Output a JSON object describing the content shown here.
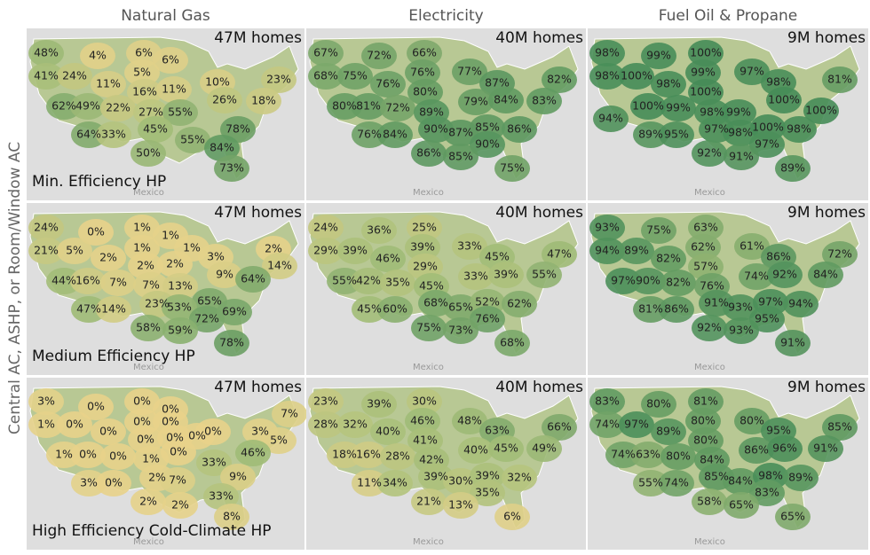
{
  "columns": [
    "Natural Gas",
    "Electricity",
    "Fuel Oil & Propane"
  ],
  "y_axis_label": "Central AC, ASHP, or Room/Window AC",
  "watermark": "Mexico",
  "rows": [
    {
      "label": "Min. Efficiency HP",
      "panels": [
        {
          "homes": "47M homes",
          "labels": [
            "48%",
            "4%",
            "6%",
            "6%",
            "41%",
            "24%",
            "11%",
            "5%",
            "10%",
            "23%",
            "16%",
            "11%",
            "62%",
            "49%",
            "22%",
            "27%",
            "55%",
            "26%",
            "18%",
            "45%",
            "78%",
            "64%",
            "33%",
            "55%",
            "84%",
            "50%",
            "73%"
          ]
        },
        {
          "homes": "40M homes",
          "labels": [
            "67%",
            "72%",
            "66%",
            "68%",
            "75%",
            "76%",
            "76%",
            "77%",
            "87%",
            "82%",
            "80%",
            "80%",
            "81%",
            "72%",
            "89%",
            "79%",
            "84%",
            "83%",
            "90%",
            "87%",
            "85%",
            "86%",
            "76%",
            "84%",
            "90%",
            "86%",
            "85%",
            "75%"
          ]
        },
        {
          "homes": "9M homes",
          "labels": [
            "98%",
            "99%",
            "100%",
            "98%",
            "100%",
            "98%",
            "99%",
            "97%",
            "98%",
            "81%",
            "100%",
            "100%",
            "99%",
            "98%",
            "99%",
            "100%",
            "100%",
            "94%",
            "97%",
            "98%",
            "100%",
            "98%",
            "89%",
            "95%",
            "97%",
            "92%",
            "91%",
            "89%"
          ]
        }
      ]
    },
    {
      "label": "Medium Efficiency HP",
      "panels": [
        {
          "homes": "47M homes",
          "labels": [
            "24%",
            "0%",
            "1%",
            "1%",
            "21%",
            "5%",
            "1%",
            "1%",
            "2%",
            "2%",
            "14%",
            "2%",
            "2%",
            "3%",
            "9%",
            "64%",
            "44%",
            "16%",
            "7%",
            "7%",
            "13%",
            "23%",
            "65%",
            "53%",
            "47%",
            "14%",
            "72%",
            "69%",
            "58%",
            "59%",
            "78%"
          ]
        },
        {
          "homes": "40M homes",
          "labels": [
            "24%",
            "36%",
            "25%",
            "29%",
            "39%",
            "46%",
            "39%",
            "33%",
            "45%",
            "47%",
            "29%",
            "55%",
            "42%",
            "35%",
            "45%",
            "33%",
            "39%",
            "55%",
            "68%",
            "65%",
            "52%",
            "62%",
            "45%",
            "60%",
            "76%",
            "75%",
            "73%",
            "68%"
          ]
        },
        {
          "homes": "9M homes",
          "labels": [
            "93%",
            "75%",
            "63%",
            "94%",
            "89%",
            "82%",
            "62%",
            "61%",
            "86%",
            "72%",
            "57%",
            "97%",
            "90%",
            "82%",
            "76%",
            "74%",
            "92%",
            "84%",
            "91%",
            "93%",
            "97%",
            "94%",
            "81%",
            "86%",
            "95%",
            "92%",
            "93%",
            "91%"
          ]
        }
      ]
    },
    {
      "label": "High Efficiency Cold-Climate HP",
      "panels": [
        {
          "homes": "47M homes",
          "labels": [
            "3%",
            "0%",
            "0%",
            "0%",
            "1%",
            "0%",
            "0%",
            "0%",
            "0%",
            "0%",
            "7%",
            "3%",
            "5%",
            "0%",
            "0%",
            "0%",
            "1%",
            "0%",
            "0%",
            "1%",
            "0%",
            "46%",
            "33%",
            "9%",
            "3%",
            "0%",
            "2%",
            "7%",
            "33%",
            "2%",
            "2%",
            "8%"
          ]
        },
        {
          "homes": "40M homes",
          "labels": [
            "23%",
            "39%",
            "30%",
            "28%",
            "32%",
            "40%",
            "46%",
            "48%",
            "63%",
            "66%",
            "41%",
            "18%",
            "16%",
            "28%",
            "42%",
            "40%",
            "45%",
            "49%",
            "39%",
            "30%",
            "39%",
            "32%",
            "11%",
            "34%",
            "35%",
            "21%",
            "13%",
            "6%"
          ]
        },
        {
          "homes": "9M homes",
          "labels": [
            "83%",
            "80%",
            "81%",
            "74%",
            "97%",
            "89%",
            "80%",
            "80%",
            "95%",
            "85%",
            "80%",
            "86%",
            "96%",
            "91%",
            "74%",
            "63%",
            "80%",
            "84%",
            "85%",
            "84%",
            "98%",
            "89%",
            "55%",
            "74%",
            "83%",
            "58%",
            "65%",
            "65%"
          ]
        }
      ]
    }
  ]
}
